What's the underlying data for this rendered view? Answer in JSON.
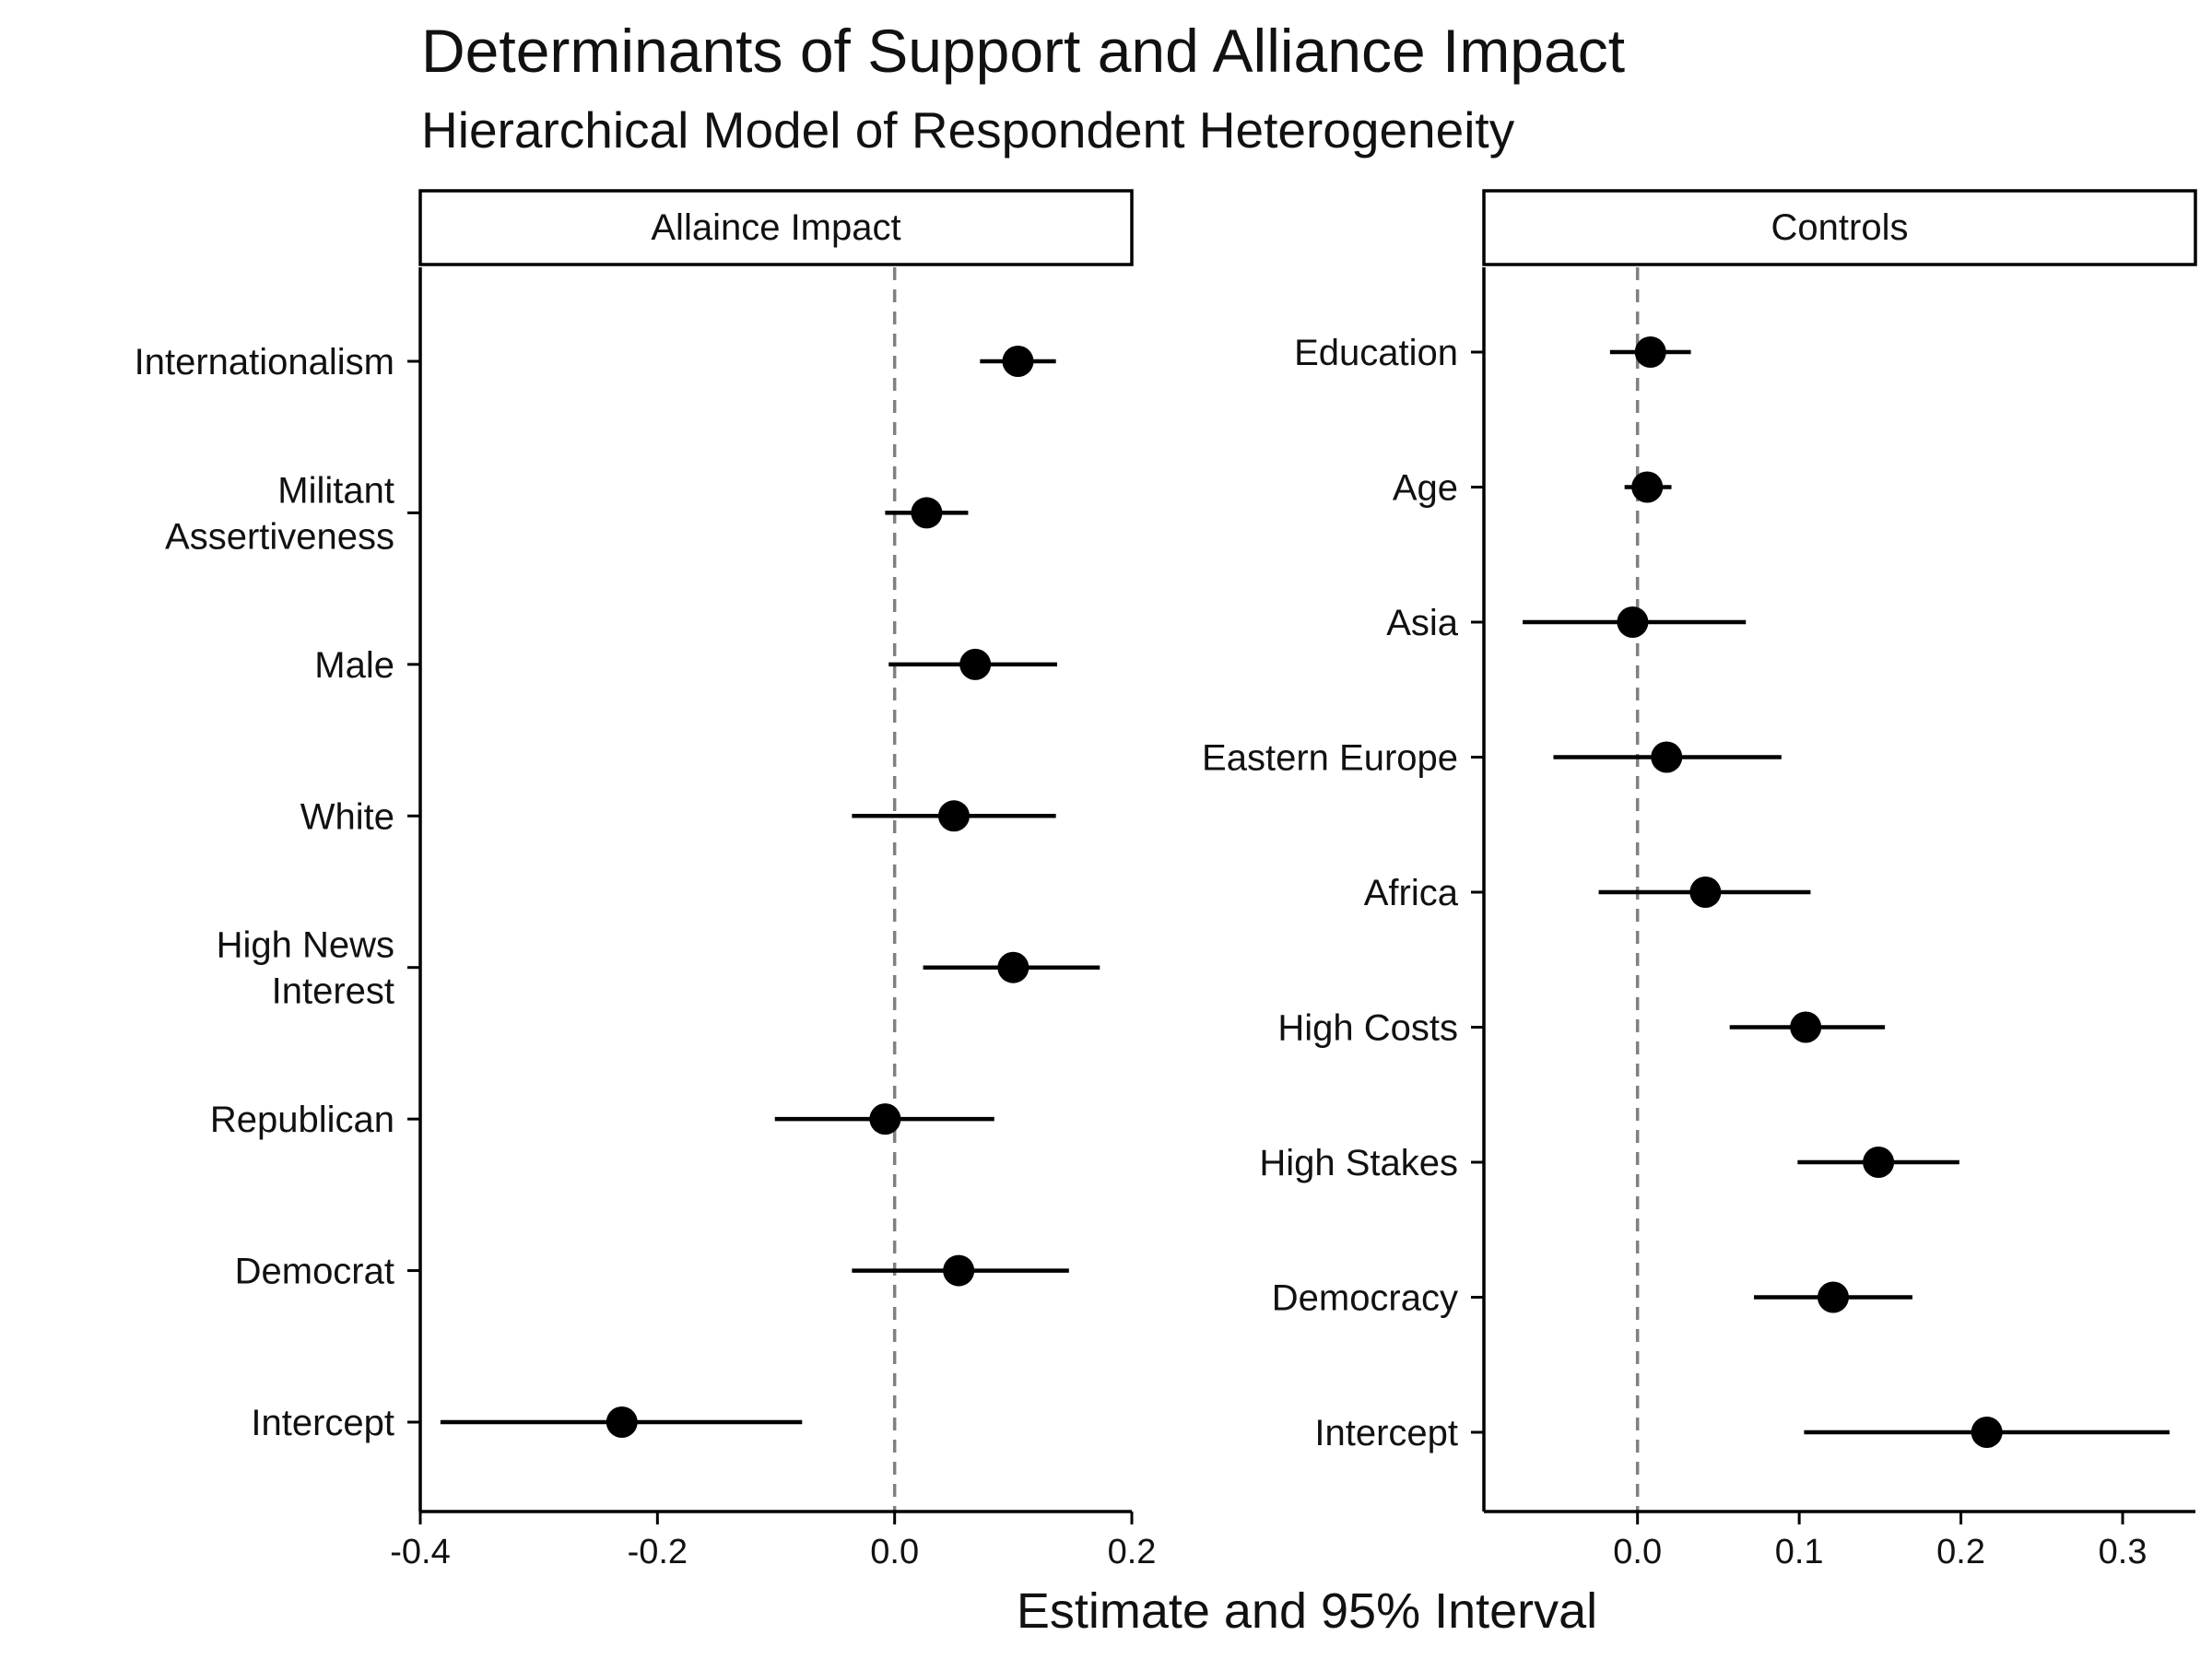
{
  "title": "Determinants of Support and Alliance Impact",
  "subtitle": "Hierarchical Model of Respondent Heterogeneity",
  "xlabel": "Estimate and 95% Interval",
  "chart_data": [
    {
      "type": "scatter",
      "panel_label": "Allaince Impact",
      "reference_line_x": 0,
      "xlim": [
        -0.4,
        0.2
      ],
      "xticks": [
        -0.4,
        -0.2,
        0.0,
        0.2
      ],
      "xtick_labels": [
        "-0.4",
        "-0.2",
        "0.0",
        "0.2"
      ],
      "grid": false,
      "series": [
        {
          "categories": [
            "Internationalism",
            "Militant Assertiveness",
            "Male",
            "White",
            "High News Interest",
            "Republican",
            "Democrat",
            "Intercept"
          ],
          "tick_labels": [
            [
              "Internationalism"
            ],
            [
              "Militant",
              "Assertiveness"
            ],
            [
              "Male"
            ],
            [
              "White"
            ],
            [
              "High News",
              "Interest"
            ],
            [
              "Republican"
            ],
            [
              "Democrat"
            ],
            [
              "Intercept"
            ]
          ],
          "estimate": [
            0.104,
            0.027,
            0.068,
            0.05,
            0.1,
            -0.008,
            0.054,
            -0.23
          ],
          "lower": [
            0.072,
            -0.008,
            -0.005,
            -0.036,
            0.024,
            -0.101,
            -0.036,
            -0.383
          ],
          "upper": [
            0.136,
            0.062,
            0.137,
            0.136,
            0.173,
            0.084,
            0.147,
            -0.078
          ]
        }
      ]
    },
    {
      "type": "scatter",
      "panel_label": "Controls",
      "reference_line_x": 0,
      "xlim": [
        -0.095,
        0.345
      ],
      "xticks": [
        0.0,
        0.1,
        0.2,
        0.3
      ],
      "xtick_labels": [
        "0.0",
        "0.1",
        "0.2",
        "0.3"
      ],
      "grid": false,
      "series": [
        {
          "categories": [
            "Education",
            "Age",
            "Asia",
            "Eastern Europe",
            "Africa",
            "High Costs",
            "High Stakes",
            "Democracy",
            "Intercept"
          ],
          "tick_labels": [
            [
              "Education"
            ],
            [
              "Age"
            ],
            [
              "Asia"
            ],
            [
              "Eastern Europe"
            ],
            [
              "Africa"
            ],
            [
              "High Costs"
            ],
            [
              "High Stakes"
            ],
            [
              "Democracy"
            ],
            [
              "Intercept"
            ]
          ],
          "estimate": [
            0.008,
            0.006,
            -0.003,
            0.018,
            0.042,
            0.104,
            0.149,
            0.121,
            0.216
          ],
          "lower": [
            -0.017,
            -0.008,
            -0.071,
            -0.052,
            -0.024,
            0.057,
            0.099,
            0.072,
            0.103
          ],
          "upper": [
            0.033,
            0.021,
            0.067,
            0.089,
            0.107,
            0.153,
            0.199,
            0.17,
            0.329
          ]
        }
      ]
    }
  ]
}
